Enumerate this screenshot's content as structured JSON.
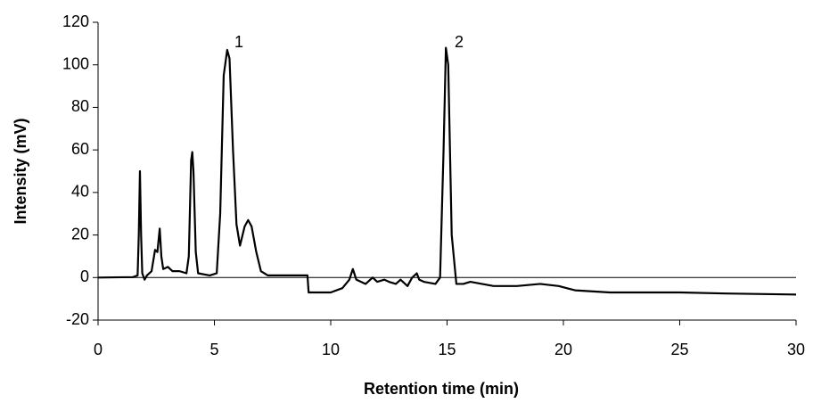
{
  "chart_data": {
    "type": "line",
    "xlabel": "Retention time (min)",
    "ylabel": "Intensity (mV)",
    "annotations": [
      "1",
      "2"
    ],
    "x": [
      0,
      1.5,
      1.7,
      1.75,
      1.8,
      1.85,
      1.9,
      2.0,
      2.1,
      2.3,
      2.45,
      2.55,
      2.65,
      2.72,
      2.8,
      3.0,
      3.2,
      3.5,
      3.8,
      3.9,
      4.0,
      4.05,
      4.1,
      4.2,
      4.3,
      4.8,
      5.1,
      5.25,
      5.4,
      5.55,
      5.65,
      5.8,
      5.95,
      6.1,
      6.3,
      6.45,
      6.6,
      6.8,
      7.0,
      7.3,
      9.0,
      9.05,
      10.0,
      10.5,
      10.8,
      10.95,
      11.1,
      11.5,
      11.8,
      12.0,
      12.3,
      12.5,
      12.8,
      13.0,
      13.3,
      13.5,
      13.7,
      13.8,
      14.0,
      14.5,
      14.7,
      14.85,
      14.95,
      15.05,
      15.2,
      15.4,
      15.7,
      16.0,
      17,
      18,
      19,
      19.8,
      20.5,
      22,
      25,
      27,
      30
    ],
    "series": [
      {
        "color": "#000000",
        "values": [
          0,
          0.2,
          1,
          20,
          50,
          20,
          2,
          -1,
          1,
          3,
          13,
          12,
          23,
          10,
          4,
          5,
          3,
          3,
          2,
          10,
          55,
          59,
          50,
          12,
          2,
          1,
          2,
          30,
          95,
          107,
          103,
          60,
          25,
          15,
          24,
          27,
          24,
          12,
          3,
          1,
          1,
          -7,
          -7,
          -5,
          -1,
          4,
          -1,
          -3,
          0,
          -2,
          -1,
          -2,
          -3,
          -1,
          -4,
          0,
          2,
          -1,
          -2,
          -3,
          0,
          60,
          108,
          100,
          20,
          -3,
          -3,
          -2,
          -4,
          -4,
          -3,
          -4,
          -6,
          -7,
          -7,
          -7.5,
          -8
        ]
      }
    ],
    "xlim": [
      0,
      30
    ],
    "xticks": [
      0,
      5,
      10,
      15,
      20,
      25,
      30
    ],
    "ylim": [
      -20,
      120
    ],
    "yticks": [
      -20,
      0,
      20,
      40,
      60,
      80,
      100,
      120
    ]
  }
}
